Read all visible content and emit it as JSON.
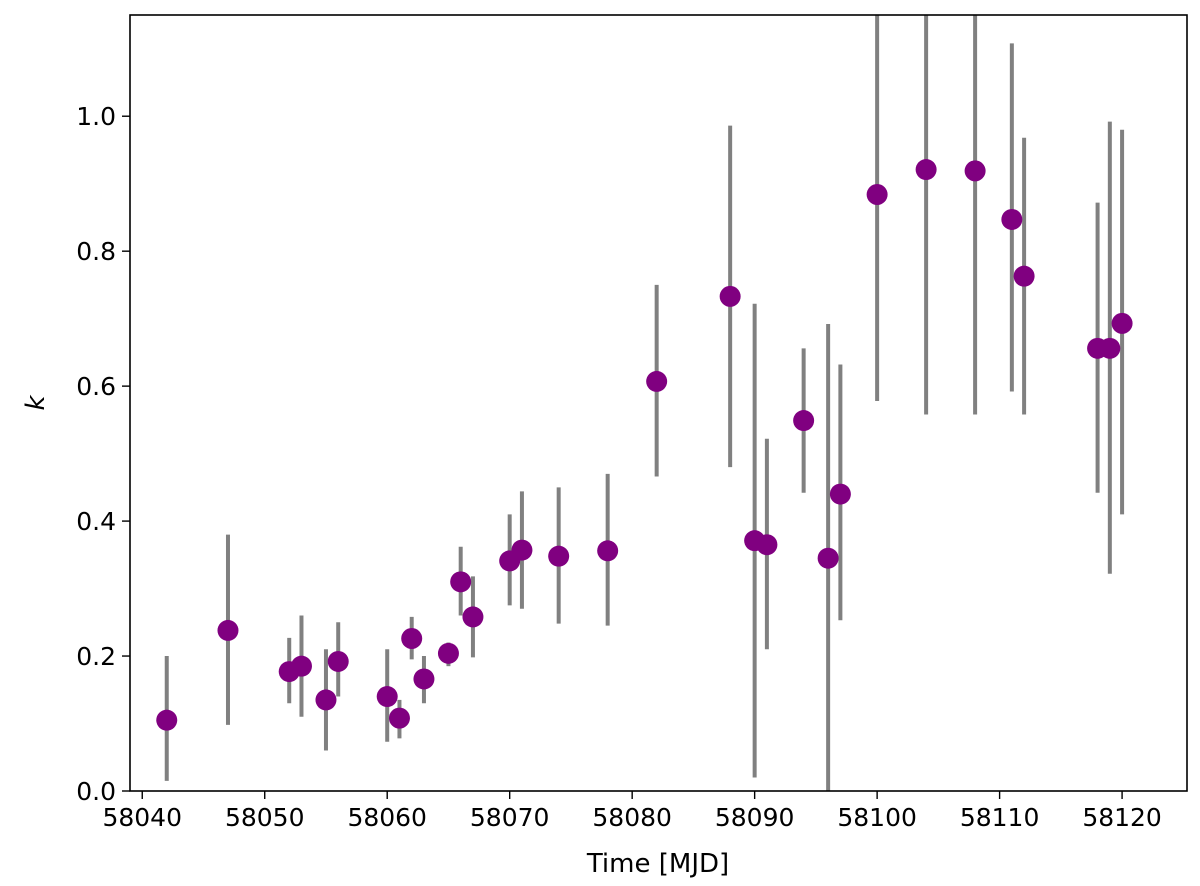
{
  "chart_data": {
    "type": "scatter",
    "title": "",
    "xlabel": "Time [MJD]",
    "ylabel": "k",
    "xlim": [
      58039,
      58125.3
    ],
    "ylim": [
      0.0,
      1.15
    ],
    "xticks": [
      58040,
      58050,
      58060,
      58070,
      58080,
      58090,
      58100,
      58110,
      58120
    ],
    "xtick_labels": [
      "58040",
      "58050",
      "58060",
      "58070",
      "58080",
      "58090",
      "58100",
      "58110",
      "58120"
    ],
    "yticks": [
      0.0,
      0.2,
      0.4,
      0.6,
      0.8,
      1.0
    ],
    "ytick_labels": [
      "0.0",
      "0.2",
      "0.4",
      "0.6",
      "0.8",
      "1.0"
    ],
    "grid": false,
    "marker_color": "#800080",
    "errorbar_color": "#808080",
    "series": [
      {
        "points": [
          {
            "x": 58042,
            "y": 0.105,
            "ylow": 0.015,
            "yhigh": 0.2
          },
          {
            "x": 58047,
            "y": 0.238,
            "ylow": 0.098,
            "yhigh": 0.38
          },
          {
            "x": 58052,
            "y": 0.177,
            "ylow": 0.13,
            "yhigh": 0.227
          },
          {
            "x": 58053,
            "y": 0.185,
            "ylow": 0.11,
            "yhigh": 0.26
          },
          {
            "x": 58055,
            "y": 0.135,
            "ylow": 0.06,
            "yhigh": 0.21
          },
          {
            "x": 58056,
            "y": 0.192,
            "ylow": 0.14,
            "yhigh": 0.25
          },
          {
            "x": 58060,
            "y": 0.14,
            "ylow": 0.073,
            "yhigh": 0.21
          },
          {
            "x": 58061,
            "y": 0.108,
            "ylow": 0.078,
            "yhigh": 0.135
          },
          {
            "x": 58062,
            "y": 0.226,
            "ylow": 0.195,
            "yhigh": 0.258
          },
          {
            "x": 58063,
            "y": 0.166,
            "ylow": 0.13,
            "yhigh": 0.2
          },
          {
            "x": 58065,
            "y": 0.204,
            "ylow": 0.185,
            "yhigh": 0.22
          },
          {
            "x": 58066,
            "y": 0.31,
            "ylow": 0.26,
            "yhigh": 0.362
          },
          {
            "x": 58067,
            "y": 0.258,
            "ylow": 0.198,
            "yhigh": 0.318
          },
          {
            "x": 58070,
            "y": 0.341,
            "ylow": 0.275,
            "yhigh": 0.41
          },
          {
            "x": 58071,
            "y": 0.357,
            "ylow": 0.27,
            "yhigh": 0.444
          },
          {
            "x": 58074,
            "y": 0.348,
            "ylow": 0.248,
            "yhigh": 0.45
          },
          {
            "x": 58078,
            "y": 0.356,
            "ylow": 0.245,
            "yhigh": 0.47
          },
          {
            "x": 58082,
            "y": 0.607,
            "ylow": 0.466,
            "yhigh": 0.75
          },
          {
            "x": 58088,
            "y": 0.733,
            "ylow": 0.48,
            "yhigh": 0.986
          },
          {
            "x": 58090,
            "y": 0.371,
            "ylow": 0.02,
            "yhigh": 0.722
          },
          {
            "x": 58091,
            "y": 0.365,
            "ylow": 0.21,
            "yhigh": 0.522
          },
          {
            "x": 58094,
            "y": 0.549,
            "ylow": 0.442,
            "yhigh": 0.656
          },
          {
            "x": 58096,
            "y": 0.345,
            "ylow": 0.0,
            "yhigh": 0.692
          },
          {
            "x": 58097,
            "y": 0.44,
            "ylow": 0.253,
            "yhigh": 0.632
          },
          {
            "x": 58100,
            "y": 0.884,
            "ylow": 0.578,
            "yhigh": 1.15
          },
          {
            "x": 58104,
            "y": 0.921,
            "ylow": 0.558,
            "yhigh": 1.15
          },
          {
            "x": 58108,
            "y": 0.919,
            "ylow": 0.558,
            "yhigh": 1.15
          },
          {
            "x": 58111,
            "y": 0.847,
            "ylow": 0.592,
            "yhigh": 1.108
          },
          {
            "x": 58112,
            "y": 0.763,
            "ylow": 0.558,
            "yhigh": 0.968
          },
          {
            "x": 58118,
            "y": 0.656,
            "ylow": 0.442,
            "yhigh": 0.872
          },
          {
            "x": 58119,
            "y": 0.656,
            "ylow": 0.322,
            "yhigh": 0.992
          },
          {
            "x": 58120,
            "y": 0.693,
            "ylow": 0.41,
            "yhigh": 0.98
          }
        ]
      }
    ]
  }
}
